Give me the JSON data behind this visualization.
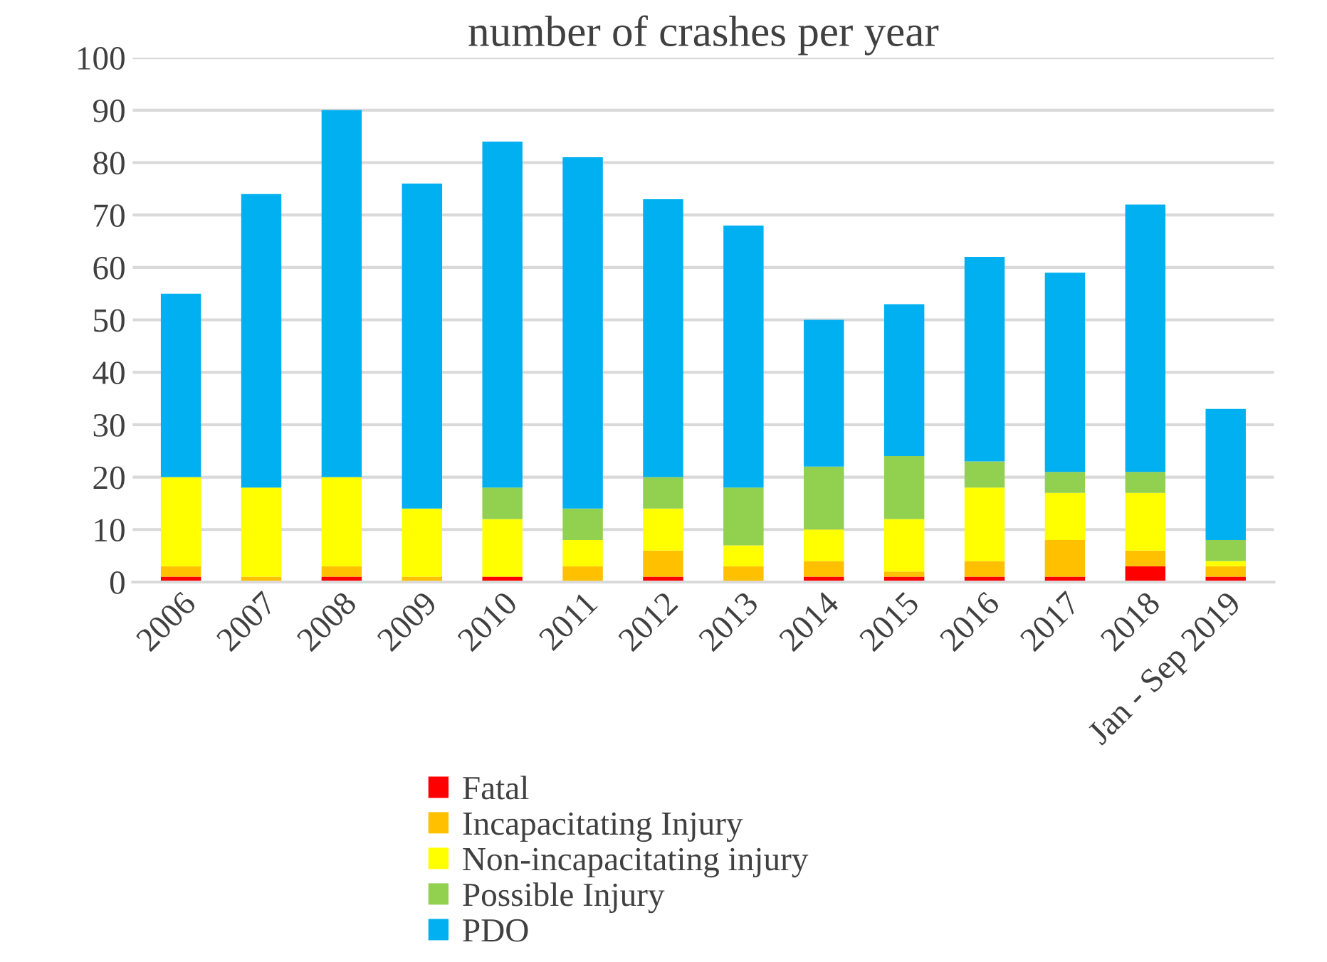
{
  "chart_data": {
    "type": "bar",
    "title": "number of crashes per year",
    "stacked": true,
    "categories": [
      "2006",
      "2007",
      "2008",
      "2009",
      "2010",
      "2011",
      "2012",
      "2013",
      "2014",
      "2015",
      "2016",
      "2017",
      "2018",
      "Jan - Sep 2019"
    ],
    "series": [
      {
        "name": "Fatal",
        "color": "#ff0000",
        "values": [
          1,
          0,
          1,
          0,
          1,
          0,
          1,
          0,
          1,
          1,
          1,
          1,
          3,
          1
        ]
      },
      {
        "name": "Incapacitating Injury",
        "color": "#ffc000",
        "values": [
          2,
          1,
          2,
          1,
          0,
          3,
          5,
          3,
          3,
          1,
          3,
          7,
          3,
          2
        ]
      },
      {
        "name": "Non-incapacitating injury",
        "color": "#ffff00",
        "values": [
          17,
          17,
          17,
          13,
          11,
          5,
          8,
          4,
          6,
          10,
          14,
          9,
          11,
          1
        ]
      },
      {
        "name": "Possible Injury",
        "color": "#92d050",
        "values": [
          0,
          0,
          0,
          0,
          6,
          6,
          6,
          11,
          12,
          12,
          5,
          4,
          4,
          4
        ]
      },
      {
        "name": "PDO",
        "color": "#00b0f0",
        "values": [
          35,
          56,
          70,
          62,
          66,
          67,
          53,
          50,
          28,
          29,
          39,
          38,
          51,
          25
        ]
      }
    ],
    "ylim": [
      0,
      100
    ],
    "yticks": [
      0,
      10,
      20,
      30,
      40,
      50,
      60,
      70,
      80,
      90,
      100
    ],
    "grid": "y",
    "legend": "bottom"
  }
}
